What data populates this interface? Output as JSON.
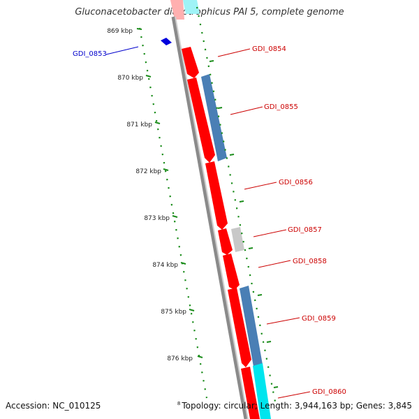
{
  "title": "Gluconacetobacter diazotrophicus PAI 5, complete genome",
  "footer": {
    "accession": "Accession: NC_010125",
    "topology_marker": "8",
    "topology": "Topology: circular; Length: 3,944,163 bp; Genes: 3,845"
  },
  "scale": {
    "unit": "kbp",
    "ticks": [
      "869 kbp",
      "870 kbp",
      "871 kbp",
      "872 kbp",
      "873 kbp",
      "874 kbp",
      "875 kbp",
      "876 kbp"
    ]
  },
  "colors": {
    "background": "#ffffff",
    "backbone": "#888888",
    "gene_cds": "#ff0000",
    "gene_blue": "#4a7fb5",
    "gene_cyan": "#00e5ee",
    "gene_grey": "#c8c8c8",
    "tick_green": "#1a8c1a",
    "label_red": "#cc0000",
    "label_blue": "#0000cc"
  },
  "genes": [
    {
      "id": "GDI_0853",
      "color": "label_blue"
    },
    {
      "id": "GDI_0854",
      "color": "label_red"
    },
    {
      "id": "GDI_0855",
      "color": "label_red"
    },
    {
      "id": "GDI_0856",
      "color": "label_red"
    },
    {
      "id": "GDI_0857",
      "color": "label_red"
    },
    {
      "id": "GDI_0858",
      "color": "label_red"
    },
    {
      "id": "GDI_0859",
      "color": "label_red"
    },
    {
      "id": "GDI_0860",
      "color": "label_red"
    }
  ]
}
